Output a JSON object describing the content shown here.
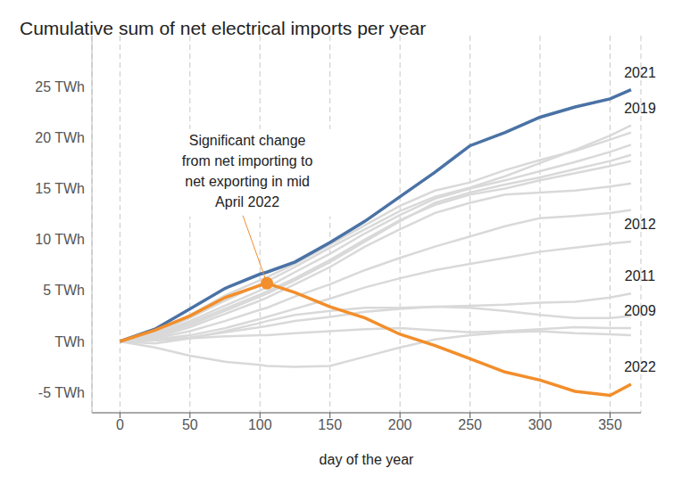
{
  "chart_data": {
    "type": "line",
    "title": "Cumulative sum of net electrical imports per year",
    "x_label": "day of the year",
    "x": [
      0,
      25,
      50,
      75,
      100,
      105,
      125,
      150,
      175,
      200,
      225,
      250,
      275,
      300,
      325,
      350,
      365
    ],
    "xlim": [
      -20,
      372
    ],
    "xticks": [
      0,
      50,
      100,
      150,
      200,
      250,
      300,
      350
    ],
    "ylim": [
      -7,
      30
    ],
    "yticks": [
      {
        "value": -5,
        "label": "-5 TWh"
      },
      {
        "value": 0,
        "label": "TWh"
      },
      {
        "value": 5,
        "label": "5 TWh"
      },
      {
        "value": 10,
        "label": "10 TWh"
      },
      {
        "value": 15,
        "label": "15 TWh"
      },
      {
        "value": 20,
        "label": "20 TWh"
      },
      {
        "value": 25,
        "label": "25 TWh"
      }
    ],
    "grid": "x",
    "series": [
      {
        "name": "2019",
        "color": "#d9d9d9",
        "values": [
          0,
          0.8,
          2.3,
          4.0,
          5.6,
          5.9,
          7.3,
          9.2,
          11.0,
          12.8,
          14.2,
          15.1,
          16.2,
          17.5,
          18.8,
          20.2,
          21.2
        ]
      },
      {
        "color": "#d9d9d9",
        "values": [
          0,
          0.9,
          2.6,
          4.5,
          6.0,
          6.3,
          7.6,
          9.5,
          11.4,
          13.3,
          14.8,
          15.6,
          16.8,
          17.8,
          18.7,
          19.8,
          20.5
        ]
      },
      {
        "color": "#d9d9d9",
        "values": [
          0,
          0.7,
          2.0,
          3.5,
          5.0,
          5.3,
          6.8,
          8.6,
          10.6,
          12.4,
          14.0,
          15.0,
          15.8,
          16.7,
          17.6,
          18.6,
          19.3
        ]
      },
      {
        "color": "#d9d9d9",
        "values": [
          0,
          0.5,
          1.6,
          3.0,
          4.4,
          4.7,
          6.0,
          7.8,
          9.8,
          11.8,
          13.6,
          14.6,
          15.4,
          16.1,
          16.9,
          17.7,
          18.3
        ]
      },
      {
        "color": "#d9d9d9",
        "values": [
          0,
          0.6,
          1.8,
          3.2,
          4.6,
          4.9,
          6.2,
          8.0,
          10.0,
          11.9,
          13.4,
          14.4,
          15.0,
          15.8,
          16.5,
          17.2,
          17.7
        ]
      },
      {
        "color": "#d9d9d9",
        "values": [
          0,
          0.4,
          1.4,
          2.7,
          4.0,
          4.3,
          5.6,
          7.3,
          9.3,
          11.0,
          12.6,
          13.6,
          14.4,
          14.6,
          14.8,
          15.2,
          15.5
        ]
      },
      {
        "color": "#d9d9d9",
        "values": [
          0,
          0.3,
          1.0,
          2.0,
          3.1,
          3.3,
          4.4,
          5.6,
          7.0,
          8.2,
          9.3,
          10.3,
          11.3,
          12.1,
          12.3,
          12.6,
          12.9
        ]
      },
      {
        "name": "2012",
        "color": "#d9d9d9",
        "values": [
          0,
          0.2,
          0.6,
          1.3,
          2.2,
          2.4,
          3.2,
          4.2,
          5.3,
          6.2,
          7.0,
          7.6,
          8.2,
          8.8,
          9.2,
          9.6,
          9.8
        ]
      },
      {
        "name": "2011",
        "color": "#d9d9d9",
        "values": [
          0,
          0.1,
          0.4,
          0.9,
          1.4,
          1.5,
          2.0,
          2.4,
          2.9,
          3.2,
          3.4,
          3.5,
          3.6,
          3.8,
          3.9,
          4.3,
          4.7
        ]
      },
      {
        "color": "#d9d9d9",
        "values": [
          0,
          -0.2,
          0.3,
          1.0,
          1.8,
          2.0,
          2.6,
          3.0,
          3.3,
          3.3,
          3.4,
          3.3,
          3.0,
          2.6,
          2.3,
          2.3,
          2.5
        ]
      },
      {
        "name": "2009",
        "color": "#d9d9d9",
        "values": [
          0,
          0.1,
          0.3,
          0.5,
          0.6,
          0.6,
          0.8,
          1.0,
          1.2,
          1.3,
          1.1,
          0.9,
          1.0,
          1.2,
          1.4,
          1.3,
          1.3
        ]
      },
      {
        "color": "#d9d9d9",
        "values": [
          0,
          -0.6,
          -1.4,
          -2.0,
          -2.3,
          -2.4,
          -2.5,
          -2.4,
          -1.5,
          -0.6,
          0.2,
          0.6,
          0.9,
          1.0,
          0.8,
          0.7,
          0.6
        ]
      },
      {
        "name": "2021",
        "color": "#4a72a5",
        "values": [
          0,
          1.2,
          3.2,
          5.2,
          6.6,
          6.8,
          7.8,
          9.7,
          11.8,
          14.2,
          16.6,
          19.2,
          20.5,
          22.0,
          23.0,
          23.8,
          24.7
        ]
      },
      {
        "name": "2022",
        "color": "#f28e2b",
        "values": [
          0,
          1.1,
          2.5,
          4.3,
          5.5,
          5.7,
          4.8,
          3.4,
          2.3,
          0.7,
          -0.4,
          -1.7,
          -3.0,
          -3.8,
          -4.9,
          -5.3,
          -4.2
        ]
      }
    ],
    "annotation": {
      "x": 105,
      "y": 5.7,
      "text_lines": [
        "Significant change",
        "from net importing to",
        "net exporting in mid",
        "April 2022"
      ]
    }
  }
}
